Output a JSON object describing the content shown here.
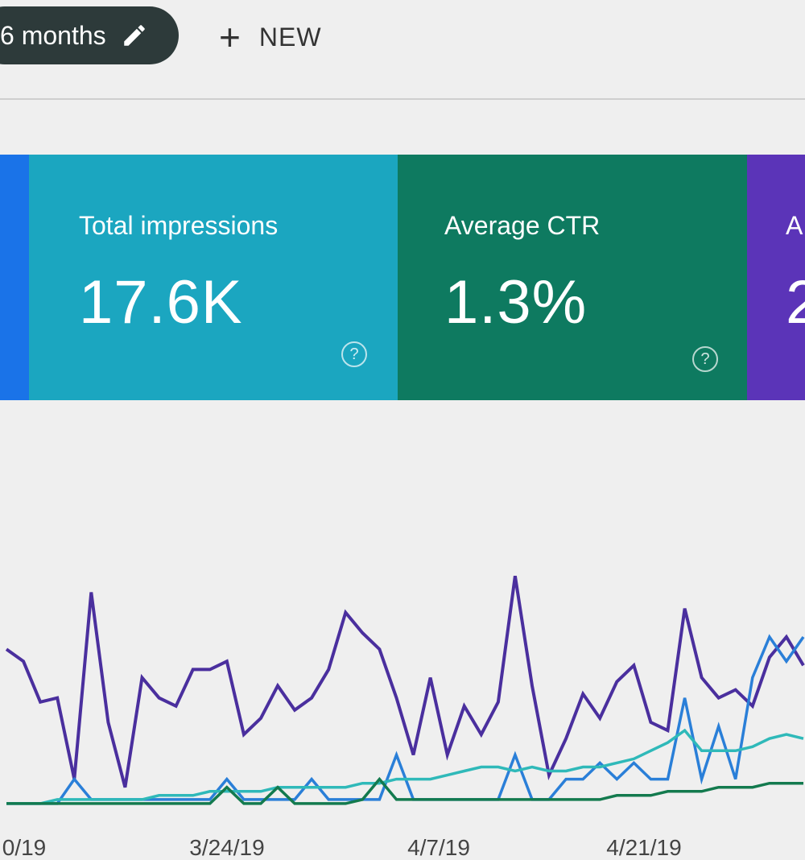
{
  "toolbar": {
    "date_range_label": "6 months",
    "new_label": "NEW"
  },
  "cards": {
    "impressions": {
      "title": "Total impressions",
      "value": "17.6K"
    },
    "ctr": {
      "title": "Average CTR",
      "value": "1.3%"
    },
    "position": {
      "title": "A",
      "value": "2"
    }
  },
  "colors": {
    "clicks": "#1a73e8",
    "impressions": "#1ba6c0",
    "ctr": "#0e7a60",
    "position": "#5b34b8"
  },
  "chart_data": {
    "type": "line",
    "title": "",
    "xlabel": "",
    "ylabel": "",
    "x_tick_labels": [
      "0/19",
      "3/24/19",
      "4/7/19",
      "4/21/19"
    ],
    "grid": false,
    "series": [
      {
        "color": "#4a2f9e",
        "values": [
          4,
          3.7,
          2.7,
          2.8,
          0.8,
          5.4,
          2.2,
          0.6,
          3.3,
          2.8,
          2.6,
          3.5,
          3.5,
          3.7,
          1.9,
          2.3,
          3.1,
          2.5,
          2.8,
          3.5,
          4.9,
          4.4,
          4.0,
          2.8,
          1.4,
          3.3,
          1.4,
          2.6,
          1.9,
          2.7,
          5.8,
          3.1,
          0.9,
          1.8,
          2.9,
          2.3,
          3.2,
          3.6,
          2.2,
          2.0,
          5.0,
          3.3,
          2.8,
          3.0,
          2.6,
          3.8,
          4.3,
          3.6
        ]
      },
      {
        "color": "#2a7fd8",
        "values": [
          0.2,
          0.2,
          0.2,
          0.2,
          0.8,
          0.3,
          0.3,
          0.3,
          0.3,
          0.3,
          0.3,
          0.3,
          0.3,
          0.8,
          0.3,
          0.3,
          0.3,
          0.3,
          0.8,
          0.3,
          0.3,
          0.3,
          0.3,
          1.4,
          0.3,
          0.3,
          0.3,
          0.3,
          0.3,
          0.3,
          1.4,
          0.3,
          0.3,
          0.8,
          0.8,
          1.2,
          0.8,
          1.2,
          0.8,
          0.8,
          2.8,
          0.8,
          2.1,
          0.8,
          3.3,
          4.3,
          3.7,
          4.3
        ]
      },
      {
        "color": "#2fb9b9",
        "values": [
          0.2,
          0.2,
          0.2,
          0.3,
          0.3,
          0.3,
          0.3,
          0.3,
          0.3,
          0.4,
          0.4,
          0.4,
          0.5,
          0.5,
          0.5,
          0.5,
          0.6,
          0.6,
          0.6,
          0.6,
          0.6,
          0.7,
          0.7,
          0.8,
          0.8,
          0.8,
          0.9,
          1.0,
          1.1,
          1.1,
          1.0,
          1.1,
          1.0,
          1.0,
          1.1,
          1.1,
          1.2,
          1.3,
          1.5,
          1.7,
          2.0,
          1.5,
          1.5,
          1.5,
          1.6,
          1.8,
          1.9,
          1.8
        ]
      },
      {
        "color": "#137a4e",
        "values": [
          0.2,
          0.2,
          0.2,
          0.2,
          0.2,
          0.2,
          0.2,
          0.2,
          0.2,
          0.2,
          0.2,
          0.2,
          0.2,
          0.6,
          0.2,
          0.2,
          0.6,
          0.2,
          0.2,
          0.2,
          0.2,
          0.3,
          0.8,
          0.3,
          0.3,
          0.3,
          0.3,
          0.3,
          0.3,
          0.3,
          0.3,
          0.3,
          0.3,
          0.3,
          0.3,
          0.3,
          0.4,
          0.4,
          0.4,
          0.5,
          0.5,
          0.5,
          0.6,
          0.6,
          0.6,
          0.7,
          0.7,
          0.7
        ]
      }
    ],
    "ylim": [
      0,
      6.5
    ]
  }
}
